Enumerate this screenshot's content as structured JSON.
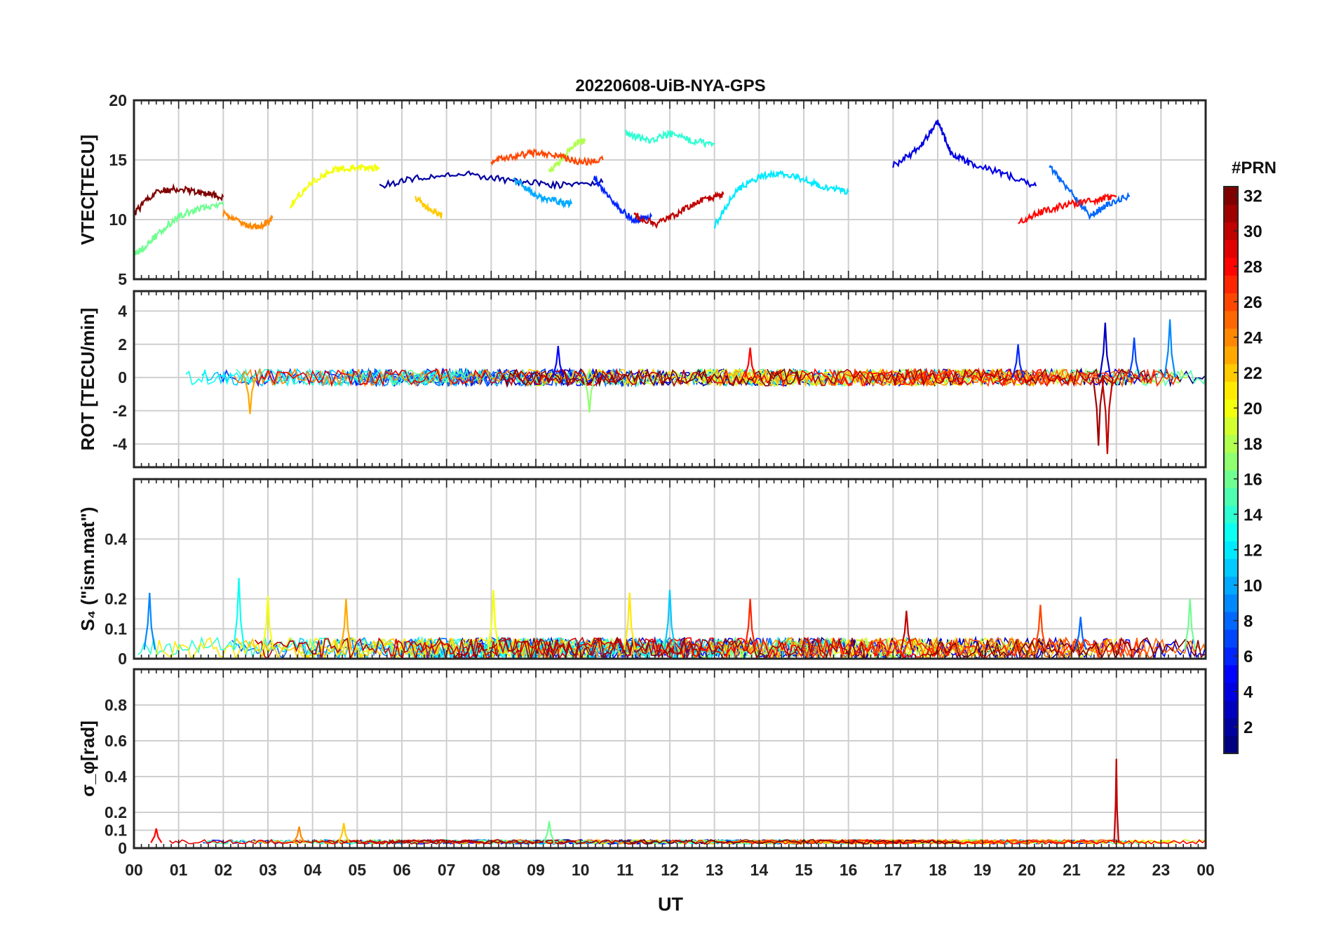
{
  "chart_data": {
    "type": "line",
    "title": "20220608-UiB-NYA-GPS",
    "xlabel": "UT",
    "x_ticks": [
      "00",
      "01",
      "02",
      "03",
      "04",
      "05",
      "06",
      "07",
      "08",
      "09",
      "10",
      "11",
      "12",
      "13",
      "14",
      "15",
      "16",
      "17",
      "18",
      "19",
      "20",
      "21",
      "22",
      "23",
      "00"
    ],
    "xlim": [
      0,
      24
    ],
    "grid": true,
    "colorbar": {
      "label": "#PRN",
      "range": [
        1,
        32
      ],
      "ticks": [
        "2",
        "4",
        "6",
        "8",
        "10",
        "12",
        "14",
        "16",
        "18",
        "20",
        "22",
        "24",
        "26",
        "28",
        "30",
        "32"
      ],
      "colormap": "jet",
      "colors": [
        "#00008f",
        "#0000ff",
        "#0080ff",
        "#00ffff",
        "#80ff80",
        "#ffff00",
        "#ff8000",
        "#ff0000",
        "#800000"
      ]
    },
    "panels": [
      {
        "ylabel": "VTEC[TECU]",
        "ylim": [
          5,
          20
        ],
        "y_ticks": [
          "5",
          "10",
          "15",
          "20"
        ],
        "series": [
          {
            "prn": 2,
            "x": [
              5.5,
              6.5,
              7.5,
              8.5,
              9.5,
              10.5
            ],
            "y": [
              12.8,
              13.6,
              13.8,
              13.2,
              12.9,
              13.1
            ]
          },
          {
            "prn": 4,
            "x": [
              17.0,
              17.6,
              18.0,
              18.3,
              18.8,
              19.5,
              20.2
            ],
            "y": [
              14.5,
              16.0,
              18.3,
              15.5,
              14.6,
              13.8,
              12.8
            ]
          },
          {
            "prn": 6,
            "x": [
              10.3,
              10.8,
              11.2,
              11.6
            ],
            "y": [
              13.5,
              11.2,
              9.9,
              10.3
            ]
          },
          {
            "prn": 8,
            "x": [
              20.5,
              21.0,
              21.4,
              21.8,
              22.3
            ],
            "y": [
              14.4,
              12.2,
              10.3,
              11.3,
              12.0
            ]
          },
          {
            "prn": 10,
            "x": [
              8.5,
              9.0,
              9.5,
              9.8
            ],
            "y": [
              13.4,
              12.0,
              11.5,
              11.3
            ]
          },
          {
            "prn": 12,
            "x": [
              13.0,
              13.5,
              14.0,
              14.5,
              15.0,
              15.5,
              16.0
            ],
            "y": [
              9.5,
              12.5,
              13.6,
              13.9,
              13.4,
              12.7,
              12.3
            ]
          },
          {
            "prn": 14,
            "x": [
              11.0,
              11.5,
              12.0,
              12.5,
              13.0
            ],
            "y": [
              17.3,
              16.6,
              17.2,
              16.6,
              16.3
            ]
          },
          {
            "prn": 16,
            "x": [
              0.0,
              0.2,
              0.5,
              1.0,
              1.5,
              2.0
            ],
            "y": [
              7.1,
              7.6,
              8.7,
              10.3,
              11.0,
              11.2
            ]
          },
          {
            "prn": 18,
            "x": [
              9.3,
              9.6,
              9.9,
              10.1
            ],
            "y": [
              14.0,
              15.2,
              16.4,
              16.6
            ]
          },
          {
            "prn": 20,
            "x": [
              3.5,
              4.0,
              4.5,
              5.0,
              5.5
            ],
            "y": [
              11.2,
              13.2,
              14.2,
              14.4,
              14.3
            ]
          },
          {
            "prn": 22,
            "x": [
              6.3,
              6.6,
              6.9
            ],
            "y": [
              11.8,
              10.9,
              10.4
            ]
          },
          {
            "prn": 24,
            "x": [
              2.0,
              2.5,
              2.8,
              3.1
            ],
            "y": [
              10.5,
              9.5,
              9.3,
              10.1
            ]
          },
          {
            "prn": 26,
            "x": [
              8.0,
              8.5,
              9.0,
              9.5,
              10.0,
              10.5
            ],
            "y": [
              14.9,
              15.3,
              15.6,
              15.3,
              14.8,
              15.0
            ]
          },
          {
            "prn": 28,
            "x": [
              19.8,
              20.3,
              20.8,
              21.5,
              22.0
            ],
            "y": [
              9.8,
              10.6,
              11.2,
              11.6,
              12.0
            ]
          },
          {
            "prn": 30,
            "x": [
              11.2,
              11.7,
              12.2,
              12.7,
              13.2
            ],
            "y": [
              10.4,
              9.6,
              10.6,
              11.6,
              12.1
            ]
          },
          {
            "prn": 32,
            "x": [
              0.0,
              0.5,
              1.0,
              1.5,
              2.0
            ],
            "y": [
              10.5,
              12.4,
              12.6,
              12.3,
              11.9
            ]
          }
        ]
      },
      {
        "ylabel": "ROT [TECU/min]",
        "ylim": [
          -5.4,
          5.2
        ],
        "y_ticks": [
          "-4",
          "-2",
          "0",
          "2",
          "4"
        ],
        "spikes": [
          {
            "prn": 31,
            "x": 21.6,
            "y": -4.1
          },
          {
            "prn": 30,
            "x": 21.8,
            "y": -4.6
          },
          {
            "prn": 3,
            "x": 21.75,
            "y": 3.3
          },
          {
            "prn": 7,
            "x": 22.4,
            "y": 2.4
          },
          {
            "prn": 9,
            "x": 23.2,
            "y": 3.5
          },
          {
            "prn": 23,
            "x": 2.6,
            "y": -2.2
          },
          {
            "prn": 17,
            "x": 10.2,
            "y": -2.1
          },
          {
            "prn": 5,
            "x": 9.5,
            "y": 1.9
          },
          {
            "prn": 28,
            "x": 13.8,
            "y": 1.8
          },
          {
            "prn": 6,
            "x": 19.8,
            "y": 2.0
          }
        ]
      },
      {
        "ylabel": "S₄ (\"ism.mat\")",
        "ylim": [
          0,
          0.6
        ],
        "y_ticks": [
          "0",
          "0.1",
          "0.2",
          "0.4"
        ],
        "peaks": [
          {
            "prn": 9,
            "x": 0.35,
            "y": 0.22
          },
          {
            "prn": 13,
            "x": 2.35,
            "y": 0.27
          },
          {
            "prn": 20,
            "x": 3.0,
            "y": 0.21
          },
          {
            "prn": 23,
            "x": 4.75,
            "y": 0.2
          },
          {
            "prn": 20,
            "x": 8.05,
            "y": 0.23
          },
          {
            "prn": 21,
            "x": 11.1,
            "y": 0.22
          },
          {
            "prn": 11,
            "x": 12.0,
            "y": 0.23
          },
          {
            "prn": 27,
            "x": 13.8,
            "y": 0.2
          },
          {
            "prn": 30,
            "x": 17.3,
            "y": 0.16
          },
          {
            "prn": 26,
            "x": 20.3,
            "y": 0.18
          },
          {
            "prn": 8,
            "x": 21.2,
            "y": 0.14
          },
          {
            "prn": 16,
            "x": 23.65,
            "y": 0.2
          }
        ]
      },
      {
        "ylabel": "σ_φ[rad]",
        "ylim": [
          0,
          1
        ],
        "y_ticks": [
          "0",
          "0.1",
          "0.2",
          "0.4",
          "0.6",
          "0.8"
        ],
        "peaks": [
          {
            "prn": 30,
            "x": 22.0,
            "y": 0.5
          },
          {
            "prn": 16,
            "x": 9.3,
            "y": 0.15
          },
          {
            "prn": 22,
            "x": 4.7,
            "y": 0.14
          },
          {
            "prn": 24,
            "x": 3.7,
            "y": 0.12
          },
          {
            "prn": 28,
            "x": 0.5,
            "y": 0.11
          }
        ]
      }
    ]
  }
}
